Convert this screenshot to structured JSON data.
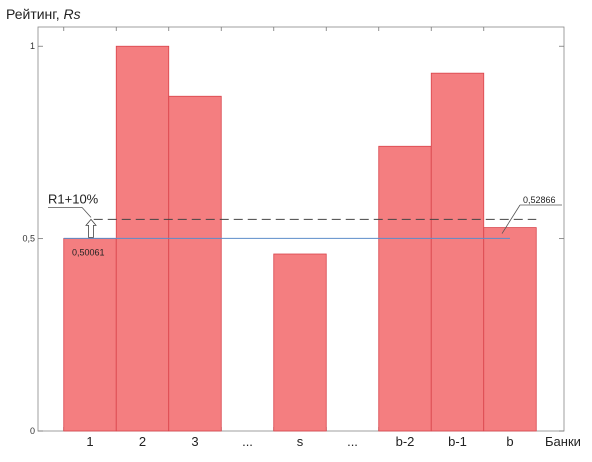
{
  "chart_data": {
    "type": "bar",
    "ylabel_prefix": "Рейтинг, ",
    "ylabel_italic": "Rs",
    "xlabel": "Банки",
    "categories": [
      "1",
      "2",
      "3",
      "...",
      "s",
      "...",
      "b-2",
      "b-1",
      "b"
    ],
    "values": [
      0.50061,
      1.0,
      0.87,
      null,
      0.46,
      null,
      0.74,
      0.93,
      0.52866
    ],
    "ylim": [
      0,
      1.05
    ],
    "yticks": [
      {
        "value": 0,
        "label": "0"
      },
      {
        "value": 0.5,
        "label": "0,5"
      },
      {
        "value": 1,
        "label": "1"
      }
    ],
    "grid": false,
    "bar_color": "#f47e80",
    "bar_edge_color": "#d9434a",
    "reference_lines": [
      {
        "name": "first-bank-rating",
        "value": 0.50061,
        "color": "#5b8dc9",
        "style": "solid"
      },
      {
        "name": "threshold",
        "label": "R1+10%",
        "value": 0.55,
        "color": "#444444",
        "style": "dashed"
      }
    ],
    "annotations": [
      {
        "text": "0,50061",
        "category": "1",
        "value": 0.50061
      },
      {
        "text": "0,52866",
        "category": "b",
        "value": 0.52866
      }
    ]
  }
}
